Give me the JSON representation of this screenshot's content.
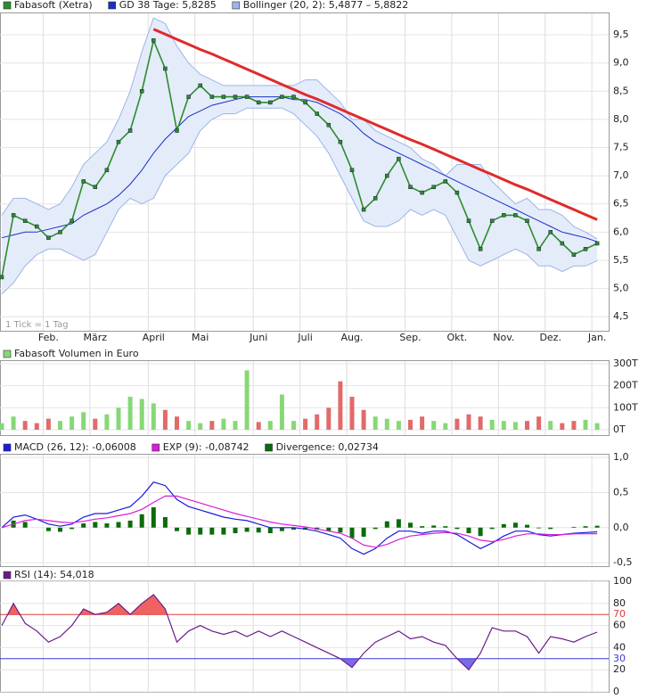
{
  "chart_data": [
    {
      "type": "price",
      "annotation": "1 Tick = 1 Tag",
      "categories": [
        null,
        null,
        null,
        null,
        "Feb.",
        null,
        null,
        null,
        "März",
        null,
        null,
        null,
        null,
        "April",
        null,
        null,
        null,
        "Mai",
        null,
        null,
        null,
        null,
        "Juni",
        null,
        null,
        null,
        "Juli",
        null,
        null,
        null,
        "Aug.",
        null,
        null,
        null,
        null,
        "Sep.",
        null,
        null,
        null,
        "Okt.",
        null,
        null,
        null,
        "Nov.",
        null,
        null,
        null,
        "Dez.",
        null,
        null,
        null,
        "Jan."
      ],
      "series": [
        {
          "name": "Fabasoft (Xetra)",
          "color": "#2e8b2e",
          "values": [
            5.2,
            6.3,
            6.2,
            6.1,
            5.9,
            6.0,
            6.2,
            6.9,
            6.8,
            7.1,
            7.6,
            7.8,
            8.5,
            9.4,
            8.9,
            7.8,
            8.4,
            8.6,
            8.4,
            8.4,
            8.4,
            8.4,
            8.3,
            8.3,
            8.4,
            8.4,
            8.3,
            8.1,
            7.9,
            7.6,
            7.1,
            6.4,
            6.6,
            7.0,
            7.3,
            6.8,
            6.7,
            6.8,
            6.9,
            6.7,
            6.2,
            5.7,
            6.2,
            6.3,
            6.3,
            6.2,
            5.7,
            6.0,
            5.8,
            5.6,
            5.7,
            5.8
          ]
        },
        {
          "name": "GD 38 Tage: 5,8285",
          "color": "#1a2fc8",
          "values": [
            5.9,
            5.95,
            6.0,
            6.0,
            6.05,
            6.1,
            6.15,
            6.3,
            6.4,
            6.5,
            6.65,
            6.85,
            7.1,
            7.4,
            7.65,
            7.85,
            8.05,
            8.15,
            8.25,
            8.3,
            8.35,
            8.4,
            8.4,
            8.4,
            8.4,
            8.35,
            8.35,
            8.3,
            8.2,
            8.1,
            7.95,
            7.75,
            7.6,
            7.5,
            7.4,
            7.3,
            7.2,
            7.1,
            7.0,
            6.9,
            6.8,
            6.7,
            6.6,
            6.5,
            6.4,
            6.3,
            6.2,
            6.1,
            6.0,
            5.95,
            5.9,
            5.83
          ]
        },
        {
          "name": "Bollinger (20, 2): 5,4877 – 5,8822",
          "color": "#9db4e6",
          "upper": [
            6.3,
            6.6,
            6.6,
            6.5,
            6.4,
            6.5,
            6.8,
            7.2,
            7.4,
            7.6,
            8.0,
            8.5,
            9.2,
            9.8,
            9.7,
            9.3,
            9.0,
            8.8,
            8.7,
            8.6,
            8.6,
            8.6,
            8.6,
            8.6,
            8.6,
            8.6,
            8.7,
            8.7,
            8.5,
            8.3,
            8.0,
            8.0,
            7.8,
            7.7,
            7.6,
            7.5,
            7.3,
            7.2,
            7.0,
            7.2,
            7.2,
            7.2,
            6.9,
            6.7,
            6.5,
            6.6,
            6.4,
            6.4,
            6.3,
            6.1,
            6.0,
            5.88
          ],
          "lower": [
            4.9,
            5.1,
            5.4,
            5.6,
            5.7,
            5.7,
            5.6,
            5.5,
            5.6,
            6.0,
            6.4,
            6.6,
            6.5,
            6.6,
            7.0,
            7.2,
            7.4,
            7.8,
            8.0,
            8.1,
            8.1,
            8.2,
            8.2,
            8.2,
            8.2,
            8.1,
            7.9,
            7.7,
            7.4,
            7.0,
            6.6,
            6.2,
            6.1,
            6.1,
            6.2,
            6.4,
            6.3,
            6.4,
            6.3,
            5.9,
            5.5,
            5.4,
            5.5,
            5.6,
            5.7,
            5.6,
            5.4,
            5.4,
            5.3,
            5.4,
            5.4,
            5.49
          ]
        }
      ],
      "trendline": {
        "color": "#e02a2a",
        "values": [
          null,
          null,
          null,
          null,
          null,
          null,
          null,
          null,
          null,
          null,
          null,
          null,
          null,
          9.6,
          9.51,
          9.42,
          9.33,
          9.24,
          9.16,
          9.07,
          8.98,
          8.89,
          8.8,
          8.71,
          8.62,
          8.53,
          8.44,
          8.36,
          8.27,
          8.18,
          8.09,
          8.0,
          7.91,
          7.82,
          7.73,
          7.64,
          7.56,
          7.47,
          7.38,
          7.29,
          7.2,
          7.11,
          7.02,
          6.93,
          6.84,
          6.76,
          6.67,
          6.58,
          6.49,
          6.4,
          6.31,
          6.22
        ]
      },
      "ylim": [
        4.25,
        9.88
      ],
      "yticks": [
        {
          "value": 4.5,
          "label": "4,5"
        },
        {
          "value": 5,
          "label": "5,0"
        },
        {
          "value": 5.5,
          "label": "5,5"
        },
        {
          "value": 6,
          "label": "6,0"
        },
        {
          "value": 6.5,
          "label": "6,5"
        },
        {
          "value": 7,
          "label": "7,0"
        },
        {
          "value": 7.5,
          "label": "7,5"
        },
        {
          "value": 8,
          "label": "8,0"
        },
        {
          "value": 8.5,
          "label": "8,5"
        },
        {
          "value": 9,
          "label": "9,0"
        },
        {
          "value": 9.5,
          "label": "9,5"
        }
      ],
      "grid": true
    },
    {
      "type": "bar",
      "title": "Fabasoft Volumen in Euro",
      "legend_color": "#8ad47a",
      "color_up": "#86d876",
      "color_down": "#e26a6a",
      "values": [
        30,
        60,
        40,
        30,
        50,
        40,
        60,
        80,
        50,
        70,
        100,
        150,
        140,
        120,
        90,
        60,
        40,
        30,
        40,
        50,
        40,
        270,
        35,
        40,
        160,
        40,
        50,
        70,
        100,
        220,
        150,
        90,
        60,
        50,
        40,
        45,
        60,
        40,
        30,
        50,
        70,
        60,
        45,
        40,
        35,
        40,
        60,
        40,
        30,
        40,
        45,
        30
      ],
      "ylim": [
        0,
        312
      ],
      "yticks": [
        {
          "value": 0,
          "label": "0T"
        },
        {
          "value": 100,
          "label": "100T"
        },
        {
          "value": 200,
          "label": "200T"
        },
        {
          "value": 300,
          "label": "300T"
        }
      ],
      "grid": true
    },
    {
      "type": "macd",
      "series": [
        {
          "name": "MACD (26, 12): -0,06008",
          "color": "#1a1ae0",
          "values": [
            0,
            0.15,
            0.18,
            0.12,
            0.05,
            0.02,
            0.05,
            0.15,
            0.2,
            0.2,
            0.25,
            0.3,
            0.45,
            0.65,
            0.6,
            0.4,
            0.3,
            0.25,
            0.2,
            0.15,
            0.12,
            0.1,
            0.05,
            0.0,
            0.0,
            0.0,
            -0.02,
            -0.05,
            -0.1,
            -0.15,
            -0.3,
            -0.38,
            -0.3,
            -0.15,
            -0.05,
            -0.05,
            -0.08,
            -0.05,
            -0.05,
            -0.1,
            -0.2,
            -0.3,
            -0.22,
            -0.12,
            -0.05,
            -0.05,
            -0.1,
            -0.12,
            -0.1,
            -0.08,
            -0.07,
            -0.06
          ]
        },
        {
          "name": "EXP (9): -0,08742",
          "color": "#d81ed8",
          "values": [
            0,
            0.05,
            0.1,
            0.12,
            0.1,
            0.08,
            0.07,
            0.09,
            0.12,
            0.14,
            0.17,
            0.2,
            0.26,
            0.36,
            0.45,
            0.45,
            0.4,
            0.35,
            0.3,
            0.25,
            0.2,
            0.16,
            0.12,
            0.08,
            0.05,
            0.03,
            0.01,
            -0.02,
            -0.05,
            -0.08,
            -0.15,
            -0.25,
            -0.28,
            -0.24,
            -0.17,
            -0.12,
            -0.1,
            -0.08,
            -0.07,
            -0.08,
            -0.12,
            -0.18,
            -0.2,
            -0.17,
            -0.12,
            -0.09,
            -0.09,
            -0.1,
            -0.1,
            -0.09,
            -0.088,
            -0.087
          ]
        },
        {
          "name": "Divergence: 0,02734",
          "color": "#0b6b0b",
          "style": "bar",
          "values": [
            0,
            0.1,
            0.08,
            0,
            -0.05,
            -0.06,
            -0.02,
            0.06,
            0.08,
            0.06,
            0.08,
            0.1,
            0.19,
            0.29,
            0.15,
            -0.05,
            -0.1,
            -0.1,
            -0.1,
            -0.1,
            -0.08,
            -0.06,
            -0.07,
            -0.08,
            -0.05,
            -0.03,
            -0.03,
            -0.03,
            -0.05,
            -0.07,
            -0.15,
            -0.13,
            -0.02,
            0.09,
            0.12,
            0.07,
            0.02,
            0.03,
            0.02,
            -0.02,
            -0.08,
            -0.12,
            -0.02,
            0.05,
            0.07,
            0.04,
            -0.01,
            -0.02,
            0.0,
            0.01,
            0.02,
            0.027
          ]
        }
      ],
      "ylim": [
        -0.55,
        1.04
      ],
      "yticks": [
        {
          "value": -0.5,
          "label": "-0,5"
        },
        {
          "value": 0,
          "label": "0,0"
        },
        {
          "value": 0.5,
          "label": "0,5"
        },
        {
          "value": 1,
          "label": "1,0"
        }
      ],
      "grid": true
    },
    {
      "type": "rsi",
      "series": [
        {
          "name": "RSI (14): 54,018",
          "color": "#6a1a8a",
          "values": [
            60,
            80,
            62,
            55,
            45,
            50,
            60,
            75,
            70,
            72,
            80,
            70,
            80,
            88,
            75,
            45,
            55,
            60,
            55,
            52,
            55,
            50,
            55,
            50,
            55,
            50,
            45,
            40,
            35,
            30,
            22,
            35,
            45,
            50,
            55,
            48,
            50,
            45,
            42,
            30,
            20,
            35,
            58,
            55,
            55,
            50,
            35,
            50,
            48,
            45,
            50,
            54
          ]
        }
      ],
      "thresholds": [
        {
          "tick": 2,
          "side": "below",
          "color": "#3a3ad0",
          "fill": "#7a6ae8"
        },
        {
          "tick": 5,
          "side": "above",
          "color": "#e03a3a",
          "fill": "#f06262"
        }
      ],
      "ylim": [
        0,
        100
      ],
      "yticks": [
        0,
        20,
        30,
        40,
        60,
        70,
        80,
        100
      ],
      "grid": true
    }
  ]
}
